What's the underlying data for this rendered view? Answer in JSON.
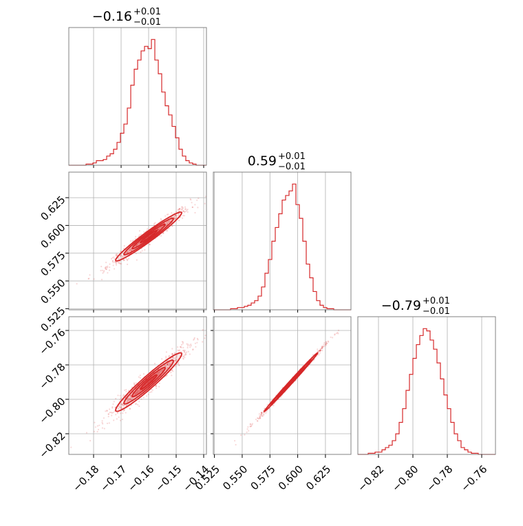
{
  "chart_data": {
    "type": "corner",
    "color": "#d62728",
    "parameters": [
      {
        "title_value": "−0.16",
        "title_plus": "+0.01",
        "title_minus": "−0.01",
        "range": [
          -0.189,
          -0.139
        ],
        "ticks": [
          -0.18,
          -0.17,
          -0.16,
          -0.15,
          -0.14
        ],
        "tick_labels": [
          "−0.18",
          "−0.17",
          "−0.16",
          "−0.15",
          "−0.14"
        ],
        "hist_bins": [
          0,
          0,
          0,
          0,
          0,
          0.5,
          0.5,
          1,
          2,
          2,
          2.5,
          4,
          5,
          7,
          10,
          14,
          18,
          25,
          35,
          42,
          46,
          50,
          52,
          51,
          55,
          46,
          40,
          32,
          26,
          22,
          17,
          12,
          7,
          4,
          2,
          1,
          0.5,
          0,
          0,
          0
        ],
        "hist_peak": 56
      },
      {
        "title_value": "0.59",
        "title_plus": "+0.01",
        "title_minus": "−0.01",
        "range": [
          0.524,
          0.648
        ],
        "ticks": [
          0.525,
          0.55,
          0.575,
          0.6,
          0.625
        ],
        "tick_labels": [
          "0.525",
          "0.550",
          "0.575",
          "0.600",
          "0.625"
        ],
        "hist_bins": [
          0,
          0,
          0,
          0,
          0,
          0.5,
          0.5,
          1,
          1,
          1.5,
          2,
          3,
          4,
          6,
          10,
          16,
          22,
          30,
          36,
          42,
          48,
          50,
          52,
          55,
          46,
          40,
          30,
          20,
          14,
          8,
          4,
          2,
          1,
          0.5,
          0.5,
          0,
          0,
          0,
          0,
          0
        ],
        "hist_peak": 56
      },
      {
        "title_value": "−0.79",
        "title_plus": "+0.01",
        "title_minus": "−0.01",
        "range": [
          -0.832,
          -0.752
        ],
        "ticks": [
          -0.82,
          -0.8,
          -0.78,
          -0.76
        ],
        "tick_labels": [
          "−0.82",
          "−0.80",
          "−0.78",
          "−0.76"
        ],
        "hist_bins": [
          0,
          0,
          0,
          0.5,
          0.5,
          1,
          1,
          2,
          3,
          4,
          6,
          9,
          14,
          20,
          28,
          35,
          42,
          48,
          52,
          55,
          54,
          50,
          46,
          40,
          33,
          26,
          20,
          14,
          9,
          6,
          3,
          2,
          1,
          0.5,
          0.5,
          0,
          0,
          0,
          0,
          0
        ],
        "hist_peak": 56
      }
    ],
    "pairs": [
      {
        "x": 0,
        "y": 1,
        "center": [
          -0.16,
          0.59
        ],
        "sigma": [
          0.006,
          0.011
        ],
        "rho": 0.97
      },
      {
        "x": 0,
        "y": 2,
        "center": [
          -0.16,
          -0.79
        ],
        "sigma": [
          0.006,
          0.0085
        ],
        "rho": 0.96
      },
      {
        "x": 1,
        "y": 2,
        "center": [
          0.594,
          -0.79
        ],
        "sigma": [
          0.012,
          0.0085
        ],
        "rho": 0.997
      }
    ]
  }
}
